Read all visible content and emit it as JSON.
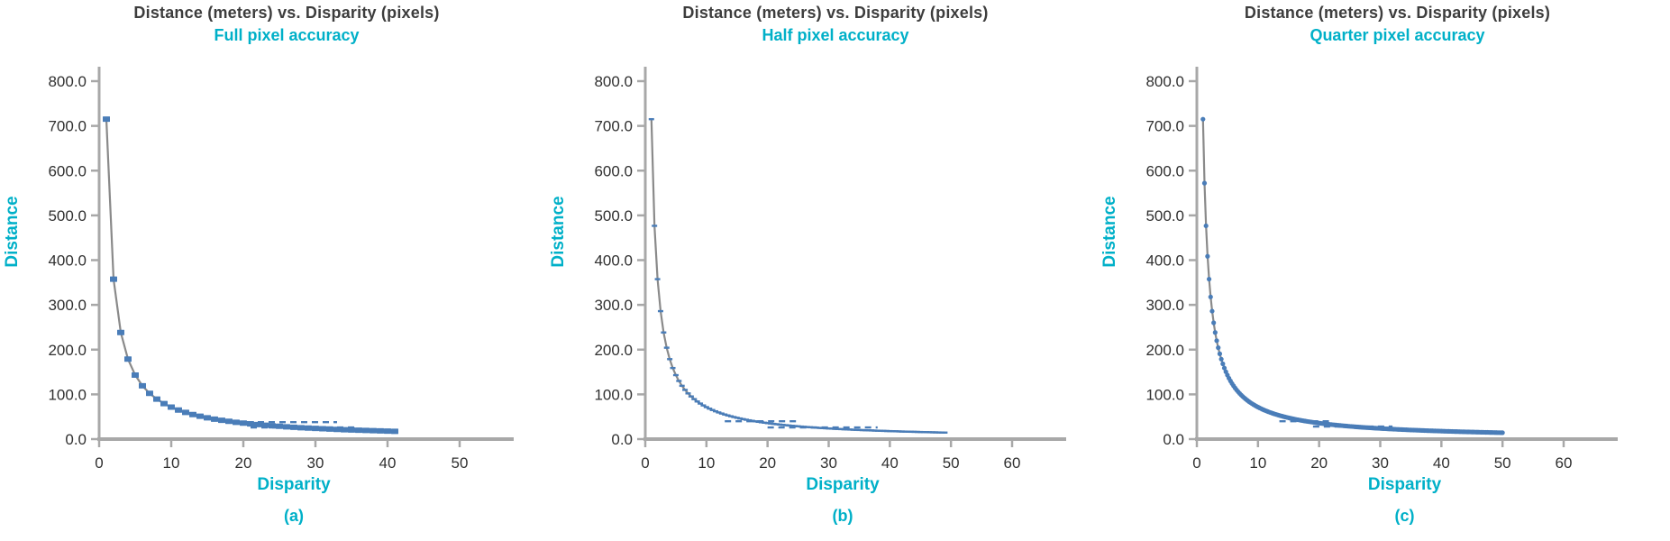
{
  "page": {
    "background": "#ffffff"
  },
  "style": {
    "accent_cyan": "#00b0c8",
    "title_color": "#3d3d3d",
    "tick_text_color": "#303030",
    "axis_color": "#a8a8a8",
    "trend_line_color": "#8a8a8a",
    "marker_color": "#4a7db8"
  },
  "chart_data": [
    {
      "type": "scatter",
      "title": "Distance (meters) vs. Disparity (pixels)",
      "subtitle": "Full pixel accuracy",
      "letter": "(a)",
      "legend": "none",
      "grid": "off",
      "x_axis": {
        "label": "Disparity",
        "min": 0,
        "max": 50,
        "ticks": [
          "0",
          "10",
          "20",
          "30",
          "40",
          "50"
        ]
      },
      "y_axis": {
        "label": "Distance",
        "min": 0,
        "max": 800,
        "ticks": [
          "800.0",
          "700.0",
          "600.0",
          "500.0",
          "400.0",
          "300.0",
          "200.0",
          "100.0",
          "0.0"
        ]
      },
      "series": {
        "name": "distance-vs-disparity-full-pixel",
        "relation": "distance = 715 / disparity",
        "constant": 715,
        "disparity_start": 1,
        "disparity_end": 41,
        "disparity_step": 1,
        "marker": "square",
        "sample_points": [
          [
            1,
            715.0
          ],
          [
            2,
            357.5
          ],
          [
            3,
            238.3
          ],
          [
            4,
            178.8
          ],
          [
            5,
            143.0
          ],
          [
            6,
            119.2
          ],
          [
            7,
            102.1
          ],
          [
            8,
            89.4
          ],
          [
            9,
            79.4
          ],
          [
            10,
            71.5
          ],
          [
            12,
            59.6
          ],
          [
            14,
            51.1
          ],
          [
            16,
            44.7
          ],
          [
            18,
            39.7
          ],
          [
            20,
            35.8
          ],
          [
            25,
            28.6
          ],
          [
            30,
            23.8
          ],
          [
            35,
            20.4
          ],
          [
            41,
            17.4
          ]
        ]
      },
      "tail_scatter_rows": [
        {
          "distance": 38,
          "from": 17.5,
          "to": 33
        },
        {
          "distance": 26,
          "from": 21,
          "to": 36
        }
      ]
    },
    {
      "type": "scatter",
      "title": "Distance (meters) vs. Disparity (pixels)",
      "subtitle": "Half pixel accuracy",
      "letter": "(b)",
      "legend": "none",
      "grid": "off",
      "x_axis": {
        "label": "Disparity",
        "min": 0,
        "max": 60,
        "ticks": [
          "0",
          "10",
          "20",
          "30",
          "40",
          "50",
          "60"
        ]
      },
      "y_axis": {
        "label": "Distance",
        "min": 0,
        "max": 800,
        "ticks": [
          "800.0",
          "700.0",
          "600.0",
          "500.0",
          "400.0",
          "300.0",
          "200.0",
          "100.0",
          "0.0"
        ]
      },
      "series": {
        "name": "distance-vs-disparity-half-pixel",
        "relation": "distance = 715 / disparity",
        "constant": 715,
        "disparity_start": 1,
        "disparity_end": 49,
        "disparity_step": 0.5,
        "marker": "dash",
        "sample_points": [
          [
            1,
            715.0
          ],
          [
            1.5,
            476.7
          ],
          [
            2,
            357.5
          ],
          [
            3,
            238.3
          ],
          [
            5,
            143.0
          ],
          [
            10,
            71.5
          ],
          [
            20,
            35.8
          ],
          [
            30,
            23.8
          ],
          [
            40,
            17.9
          ],
          [
            49,
            14.6
          ]
        ]
      },
      "tail_scatter_rows": [
        {
          "distance": 40,
          "from": 13,
          "to": 25
        },
        {
          "distance": 26,
          "from": 20,
          "to": 38
        }
      ]
    },
    {
      "type": "scatter",
      "title": "Distance (meters) vs. Disparity (pixels)",
      "subtitle": "Quarter pixel accuracy",
      "letter": "(c)",
      "legend": "none",
      "grid": "off",
      "x_axis": {
        "label": "Disparity",
        "min": 0,
        "max": 60,
        "ticks": [
          "0",
          "10",
          "20",
          "30",
          "40",
          "50",
          "60"
        ]
      },
      "y_axis": {
        "label": "Distance",
        "min": 0,
        "max": 800,
        "ticks": [
          "800.0",
          "700.0",
          "600.0",
          "500.0",
          "400.0",
          "300.0",
          "200.0",
          "100.0",
          "0.0"
        ]
      },
      "series": {
        "name": "distance-vs-disparity-quarter-pixel",
        "relation": "distance = 715 / disparity",
        "constant": 715,
        "disparity_start": 1,
        "disparity_end": 50,
        "disparity_step": 0.25,
        "marker": "dot",
        "sample_points": [
          [
            1,
            715.0
          ],
          [
            1.25,
            572.0
          ],
          [
            1.5,
            476.7
          ],
          [
            2,
            357.5
          ],
          [
            3,
            238.3
          ],
          [
            5,
            143.0
          ],
          [
            10,
            71.5
          ],
          [
            20,
            35.8
          ],
          [
            30,
            23.8
          ],
          [
            40,
            17.9
          ],
          [
            50,
            14.3
          ]
        ]
      },
      "tail_scatter_rows": [
        {
          "distance": 40,
          "from": 13.5,
          "to": 22
        },
        {
          "distance": 28,
          "from": 19,
          "to": 32
        }
      ]
    }
  ]
}
